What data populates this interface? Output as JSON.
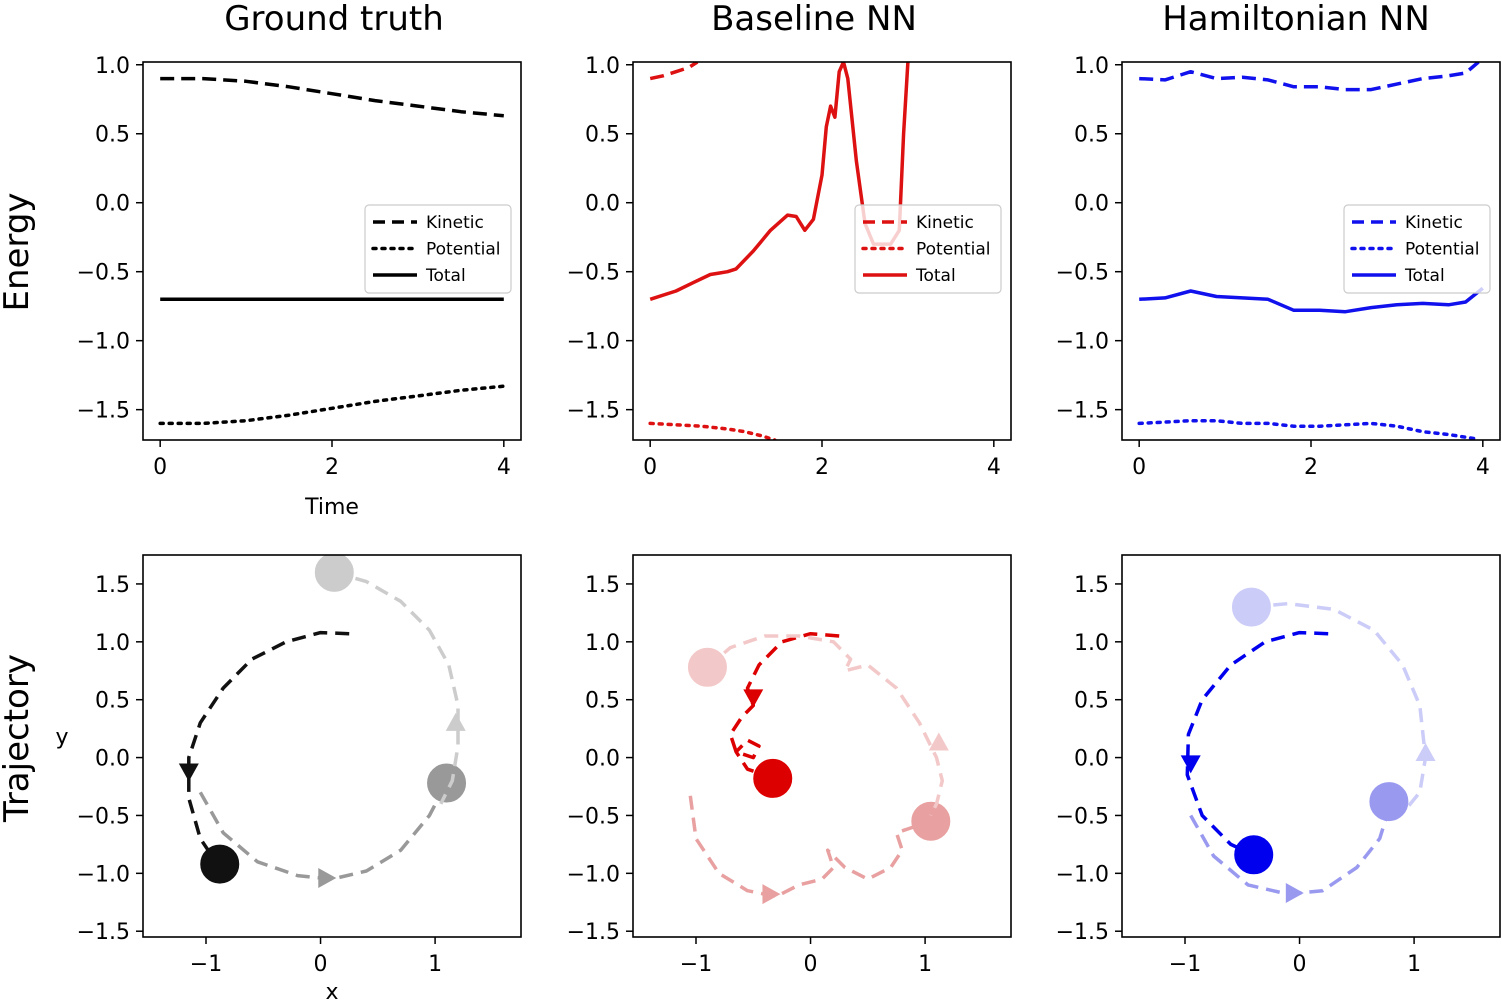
{
  "figure": {
    "column_titles": [
      "Ground truth",
      "Baseline NN",
      "Hamiltonian NN"
    ],
    "row_labels": [
      "Energy",
      "Trajectory"
    ]
  },
  "chart_data": [
    {
      "id": "energy-ground-truth",
      "type": "line",
      "row": 0,
      "col": 0,
      "title": "Ground truth",
      "xlabel": "Time",
      "ylabel": "Energy",
      "xlim": [
        -0.2,
        4.2
      ],
      "ylim": [
        -1.72,
        1.02
      ],
      "xticks": [
        0,
        2,
        4
      ],
      "yticks": [
        1.0,
        0.5,
        0.0,
        -0.5,
        -1.0,
        -1.5
      ],
      "xtick_labels": [
        "0",
        "2",
        "4"
      ],
      "ytick_labels": [
        "1.0",
        "0.5",
        "0.0",
        "−0.5",
        "−1.0",
        "−1.5"
      ],
      "color": "#000000",
      "legend_loc": "center-right",
      "legend": [
        "Kinetic",
        "Potential",
        "Total"
      ],
      "series": [
        {
          "name": "Kinetic",
          "style": "dashed",
          "x": [
            0,
            0.5,
            1,
            1.5,
            2,
            2.5,
            3,
            3.5,
            4
          ],
          "y": [
            0.9,
            0.9,
            0.88,
            0.84,
            0.79,
            0.74,
            0.7,
            0.66,
            0.63
          ]
        },
        {
          "name": "Potential",
          "style": "dotted",
          "x": [
            0,
            0.5,
            1,
            1.5,
            2,
            2.5,
            3,
            3.5,
            4
          ],
          "y": [
            -1.6,
            -1.6,
            -1.58,
            -1.54,
            -1.49,
            -1.44,
            -1.4,
            -1.36,
            -1.33
          ]
        },
        {
          "name": "Total",
          "style": "solid",
          "x": [
            0,
            4
          ],
          "y": [
            -0.7,
            -0.7
          ]
        }
      ]
    },
    {
      "id": "energy-baseline",
      "type": "line",
      "row": 0,
      "col": 1,
      "title": "Baseline NN",
      "xlabel": "",
      "ylabel": "",
      "xlim": [
        -0.2,
        4.2
      ],
      "ylim": [
        -1.72,
        1.02
      ],
      "xticks": [
        0,
        2,
        4
      ],
      "yticks": [
        1.0,
        0.5,
        0.0,
        -0.5,
        -1.0,
        -1.5
      ],
      "xtick_labels": [
        "0",
        "2",
        "4"
      ],
      "ytick_labels": [
        "1.0",
        "0.5",
        "0.0",
        "−0.5",
        "−1.0",
        "−1.5"
      ],
      "color": "#dd1111",
      "legend_loc": "center-right",
      "legend": [
        "Kinetic",
        "Potential",
        "Total"
      ],
      "series": [
        {
          "name": "Kinetic",
          "style": "dashed",
          "x": [
            0,
            0.15,
            0.3,
            0.45,
            0.55
          ],
          "y": [
            0.9,
            0.92,
            0.95,
            0.98,
            1.02
          ]
        },
        {
          "name": "Potential",
          "style": "dotted",
          "x": [
            0,
            0.3,
            0.6,
            0.9,
            1.1,
            1.3,
            1.45
          ],
          "y": [
            -1.6,
            -1.61,
            -1.62,
            -1.64,
            -1.66,
            -1.69,
            -1.72
          ]
        },
        {
          "name": "Total",
          "style": "solid",
          "x": [
            0,
            0.3,
            0.5,
            0.7,
            0.8,
            0.9,
            1.0,
            1.2,
            1.4,
            1.6,
            1.7,
            1.8,
            1.9,
            2.0,
            2.05,
            2.1,
            2.15,
            2.2,
            2.25,
            2.3,
            2.4,
            2.5,
            2.6,
            2.7,
            2.8,
            2.9,
            2.95,
            3.0
          ],
          "y": [
            -0.7,
            -0.64,
            -0.58,
            -0.52,
            -0.51,
            -0.5,
            -0.48,
            -0.35,
            -0.2,
            -0.09,
            -0.1,
            -0.2,
            -0.12,
            0.2,
            0.55,
            0.7,
            0.62,
            0.95,
            1.02,
            0.9,
            0.3,
            -0.15,
            -0.3,
            -0.3,
            -0.3,
            -0.2,
            0.5,
            1.02
          ]
        }
      ]
    },
    {
      "id": "energy-hamiltonian",
      "type": "line",
      "row": 0,
      "col": 2,
      "title": "Hamiltonian NN",
      "xlabel": "",
      "ylabel": "",
      "xlim": [
        -0.2,
        4.2
      ],
      "ylim": [
        -1.72,
        1.02
      ],
      "xticks": [
        0,
        2,
        4
      ],
      "yticks": [
        1.0,
        0.5,
        0.0,
        -0.5,
        -1.0,
        -1.5
      ],
      "xtick_labels": [
        "0",
        "2",
        "4"
      ],
      "ytick_labels": [
        "1.0",
        "0.5",
        "0.0",
        "−0.5",
        "−1.0",
        "−1.5"
      ],
      "color": "#1111ee",
      "legend_loc": "center-right",
      "legend": [
        "Kinetic",
        "Potential",
        "Total"
      ],
      "series": [
        {
          "name": "Kinetic",
          "style": "dashed",
          "x": [
            0,
            0.3,
            0.6,
            0.9,
            1.2,
            1.5,
            1.8,
            2.1,
            2.4,
            2.7,
            3.0,
            3.3,
            3.6,
            3.8,
            3.95
          ],
          "y": [
            0.9,
            0.89,
            0.95,
            0.9,
            0.91,
            0.89,
            0.84,
            0.84,
            0.82,
            0.82,
            0.86,
            0.9,
            0.92,
            0.94,
            1.02
          ]
        },
        {
          "name": "Potential",
          "style": "dotted",
          "x": [
            0,
            0.3,
            0.6,
            0.9,
            1.2,
            1.5,
            1.8,
            2.1,
            2.4,
            2.7,
            3.0,
            3.3,
            3.6,
            3.9
          ],
          "y": [
            -1.6,
            -1.59,
            -1.58,
            -1.58,
            -1.6,
            -1.6,
            -1.62,
            -1.62,
            -1.61,
            -1.6,
            -1.62,
            -1.66,
            -1.68,
            -1.71
          ]
        },
        {
          "name": "Total",
          "style": "solid",
          "x": [
            0,
            0.3,
            0.6,
            0.9,
            1.2,
            1.5,
            1.8,
            2.1,
            2.4,
            2.7,
            3.0,
            3.3,
            3.6,
            3.8,
            4.0
          ],
          "y": [
            -0.7,
            -0.69,
            -0.64,
            -0.68,
            -0.69,
            -0.7,
            -0.78,
            -0.78,
            -0.79,
            -0.76,
            -0.74,
            -0.73,
            -0.74,
            -0.72,
            -0.62
          ]
        }
      ]
    },
    {
      "id": "trajectory-ground-truth",
      "type": "line",
      "row": 1,
      "col": 0,
      "xlabel": "x",
      "ylabel": "y",
      "xlim": [
        -1.55,
        1.75
      ],
      "ylim": [
        -1.55,
        1.75
      ],
      "xticks": [
        -1,
        0,
        1
      ],
      "yticks": [
        1.5,
        1.0,
        0.5,
        0.0,
        -0.5,
        -1.0,
        -1.5
      ],
      "xtick_labels": [
        "−1",
        "0",
        "1"
      ],
      "ytick_labels": [
        "1.5",
        "1.0",
        "0.5",
        "0.0",
        "−0.5",
        "−1.0",
        "−1.5"
      ],
      "series": [
        {
          "name": "body-1",
          "color": "#111111",
          "x": [
            0.25,
            0.0,
            -0.3,
            -0.6,
            -0.85,
            -1.05,
            -1.15,
            -1.15,
            -1.05,
            -0.9
          ],
          "y": [
            1.07,
            1.08,
            1.0,
            0.85,
            0.6,
            0.3,
            0.0,
            -0.35,
            -0.7,
            -0.92
          ],
          "marker": [
            -1.15,
            -0.12,
            "down"
          ],
          "body": [
            -0.88,
            -0.92
          ]
        },
        {
          "name": "body-2",
          "color": "#999999",
          "x": [
            -1.05,
            -0.85,
            -0.55,
            -0.2,
            0.1,
            0.4,
            0.7,
            0.95,
            1.1
          ],
          "y": [
            -0.3,
            -0.65,
            -0.9,
            -1.02,
            -1.05,
            -0.98,
            -0.8,
            -0.5,
            -0.22
          ],
          "marker": [
            0.05,
            -1.04,
            "right"
          ],
          "body": [
            1.1,
            -0.22
          ]
        },
        {
          "name": "body-3",
          "color": "#cccccc",
          "x": [
            0.12,
            0.4,
            0.7,
            0.95,
            1.12,
            1.2,
            1.2,
            1.15,
            1.05
          ],
          "y": [
            1.6,
            1.52,
            1.35,
            1.1,
            0.8,
            0.45,
            0.1,
            -0.2,
            -0.4
          ],
          "marker": [
            1.18,
            0.3,
            "up"
          ],
          "body": [
            0.12,
            1.6
          ]
        }
      ]
    },
    {
      "id": "trajectory-baseline",
      "type": "line",
      "row": 1,
      "col": 1,
      "xlabel": "",
      "ylabel": "",
      "xlim": [
        -1.55,
        1.75
      ],
      "ylim": [
        -1.55,
        1.75
      ],
      "xticks": [
        -1,
        0,
        1
      ],
      "yticks": [
        1.5,
        1.0,
        0.5,
        0.0,
        -0.5,
        -1.0,
        -1.5
      ],
      "xtick_labels": [
        "−1",
        "0",
        "1"
      ],
      "ytick_labels": [
        "1.5",
        "1.0",
        "0.5",
        "0.0",
        "−0.5",
        "−1.0",
        "−1.5"
      ],
      "series": [
        {
          "name": "body-1",
          "color": "#dd0000",
          "x": [
            0.25,
            0.0,
            -0.25,
            -0.45,
            -0.55,
            -0.5,
            -0.6,
            -0.7,
            -0.65,
            -0.5,
            -0.45,
            -0.55,
            -0.65,
            -0.55,
            -0.4,
            -0.3
          ],
          "y": [
            1.05,
            1.07,
            1.0,
            0.8,
            0.6,
            0.45,
            0.35,
            0.2,
            0.05,
            0.0,
            0.1,
            0.15,
            0.05,
            -0.1,
            -0.15,
            -0.18
          ],
          "marker": [
            -0.5,
            0.52,
            "down"
          ],
          "body": [
            -0.33,
            -0.18
          ]
        },
        {
          "name": "body-2",
          "color": "#e8a0a0",
          "x": [
            -1.05,
            -1.0,
            -0.8,
            -0.55,
            -0.3,
            -0.1,
            0.1,
            0.2,
            0.15,
            0.3,
            0.5,
            0.7,
            0.8,
            0.75,
            0.9,
            1.05
          ],
          "y": [
            -0.33,
            -0.7,
            -1.0,
            -1.15,
            -1.2,
            -1.1,
            -1.05,
            -0.95,
            -0.8,
            -0.95,
            -1.05,
            -0.95,
            -0.8,
            -0.65,
            -0.6,
            -0.55
          ],
          "marker": [
            -0.35,
            -1.18,
            "right"
          ],
          "body": [
            1.05,
            -0.55
          ]
        },
        {
          "name": "body-3",
          "color": "#f3c8c8",
          "x": [
            -0.9,
            -0.7,
            -0.4,
            -0.1,
            0.2,
            0.35,
            0.3,
            0.5,
            0.75,
            0.95,
            1.1,
            1.15,
            1.1,
            1.05
          ],
          "y": [
            0.78,
            0.95,
            1.05,
            1.05,
            1.0,
            0.85,
            0.75,
            0.8,
            0.6,
            0.3,
            0.0,
            -0.2,
            -0.4,
            -0.5
          ],
          "marker": [
            1.12,
            0.13,
            "up"
          ],
          "body": [
            -0.9,
            0.78
          ]
        }
      ]
    },
    {
      "id": "trajectory-hamiltonian",
      "type": "line",
      "row": 1,
      "col": 2,
      "xlabel": "",
      "ylabel": "",
      "xlim": [
        -1.55,
        1.75
      ],
      "ylim": [
        -1.55,
        1.75
      ],
      "xticks": [
        -1,
        0,
        1
      ],
      "yticks": [
        1.5,
        1.0,
        0.5,
        0.0,
        -0.5,
        -1.0,
        -1.5
      ],
      "xtick_labels": [
        "−1",
        "0",
        "1"
      ],
      "ytick_labels": [
        "1.5",
        "1.0",
        "0.5",
        "0.0",
        "−0.5",
        "−1.0",
        "−1.5"
      ],
      "series": [
        {
          "name": "body-1",
          "color": "#0000ee",
          "x": [
            0.25,
            0.0,
            -0.3,
            -0.6,
            -0.85,
            -0.97,
            -0.98,
            -0.85,
            -0.6,
            -0.4
          ],
          "y": [
            1.07,
            1.08,
            1.0,
            0.8,
            0.5,
            0.2,
            -0.15,
            -0.5,
            -0.75,
            -0.84
          ],
          "marker": [
            -0.95,
            -0.05,
            "down"
          ],
          "body": [
            -0.4,
            -0.84
          ]
        },
        {
          "name": "body-2",
          "color": "#9999f0",
          "x": [
            -0.95,
            -0.75,
            -0.45,
            -0.1,
            0.2,
            0.5,
            0.7,
            0.8
          ],
          "y": [
            -0.5,
            -0.85,
            -1.1,
            -1.18,
            -1.15,
            -0.95,
            -0.7,
            -0.38
          ],
          "marker": [
            -0.05,
            -1.17,
            "right"
          ],
          "body": [
            0.78,
            -0.38
          ]
        },
        {
          "name": "body-3",
          "color": "#ccccf8",
          "x": [
            -0.42,
            -0.1,
            0.3,
            0.65,
            0.9,
            1.05,
            1.1,
            1.05,
            0.95
          ],
          "y": [
            1.3,
            1.33,
            1.28,
            1.1,
            0.8,
            0.45,
            0.0,
            -0.3,
            -0.42
          ],
          "marker": [
            1.1,
            0.04,
            "up"
          ],
          "body": [
            -0.42,
            1.3
          ]
        }
      ]
    }
  ]
}
